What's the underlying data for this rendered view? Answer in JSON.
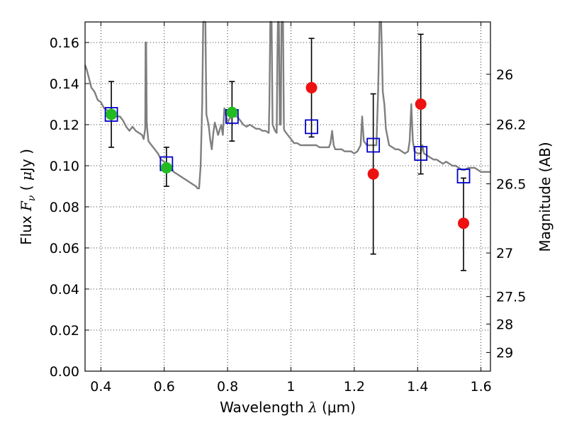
{
  "chart_data": {
    "type": "scatter",
    "xlabel": "Wavelength  λ (μm)",
    "ylabel": "Flux  F_ν  ( μJy )",
    "ylabel_parts": {
      "pre": "Flux ",
      "var": "F",
      "sub": "ν",
      "open": " ( ",
      "mu": "μ",
      "unit": "Jy )"
    },
    "xlabel_parts": {
      "pre": "Wavelength  ",
      "lambda": "λ",
      "unit": " (μm)"
    },
    "y2label": "Magnitude (AB)",
    "xlim": [
      0.35,
      1.63
    ],
    "ylim": [
      0.0,
      0.17
    ],
    "grid": true,
    "x_ticks": [
      "0.4",
      "0.6",
      "0.8",
      "1",
      "1.2",
      "1.4",
      "1.6"
    ],
    "y_ticks": [
      "0.00",
      "0.02",
      "0.04",
      "0.06",
      "0.08",
      "0.10",
      "0.12",
      "0.14",
      "0.16"
    ],
    "y2_ticks": [
      "26",
      "26.2",
      "26.5",
      "27",
      "27.5",
      "28",
      "29"
    ],
    "colors": {
      "spectrum": "#7f7f7f",
      "green": "#22bb22",
      "red": "#ee1111",
      "model_box": "#0000cc",
      "errorbar": "#000000"
    },
    "series": [
      {
        "type": "line",
        "values": [
          [
            0.35,
            0.149
          ],
          [
            0.355,
            0.147
          ],
          [
            0.36,
            0.144
          ],
          [
            0.37,
            0.138
          ],
          [
            0.38,
            0.136
          ],
          [
            0.39,
            0.132
          ],
          [
            0.4,
            0.131
          ],
          [
            0.41,
            0.128
          ],
          [
            0.42,
            0.127
          ],
          [
            0.43,
            0.126
          ],
          [
            0.44,
            0.125
          ],
          [
            0.45,
            0.124
          ],
          [
            0.46,
            0.124
          ],
          [
            0.47,
            0.122
          ],
          [
            0.48,
            0.119
          ],
          [
            0.49,
            0.117
          ],
          [
            0.5,
            0.119
          ],
          [
            0.51,
            0.117
          ],
          [
            0.52,
            0.116
          ],
          [
            0.53,
            0.115
          ],
          [
            0.535,
            0.113
          ],
          [
            0.54,
            0.118
          ],
          [
            0.541,
            0.16
          ],
          [
            0.543,
            0.16
          ],
          [
            0.545,
            0.12
          ],
          [
            0.55,
            0.112
          ],
          [
            0.56,
            0.11
          ],
          [
            0.57,
            0.108
          ],
          [
            0.58,
            0.106
          ],
          [
            0.59,
            0.103
          ],
          [
            0.6,
            0.102
          ],
          [
            0.61,
            0.1
          ],
          [
            0.62,
            0.099
          ],
          [
            0.63,
            0.097
          ],
          [
            0.64,
            0.096
          ],
          [
            0.65,
            0.095
          ],
          [
            0.66,
            0.094
          ],
          [
            0.67,
            0.093
          ],
          [
            0.68,
            0.092
          ],
          [
            0.69,
            0.091
          ],
          [
            0.7,
            0.09
          ],
          [
            0.705,
            0.089
          ],
          [
            0.71,
            0.089
          ],
          [
            0.715,
            0.1
          ],
          [
            0.72,
            0.13
          ],
          [
            0.723,
            0.17
          ],
          [
            0.73,
            0.17
          ],
          [
            0.733,
            0.125
          ],
          [
            0.74,
            0.12
          ],
          [
            0.745,
            0.113
          ],
          [
            0.75,
            0.108
          ],
          [
            0.755,
            0.116
          ],
          [
            0.76,
            0.121
          ],
          [
            0.77,
            0.115
          ],
          [
            0.78,
            0.12
          ],
          [
            0.785,
            0.115
          ],
          [
            0.79,
            0.128
          ],
          [
            0.8,
            0.121
          ],
          [
            0.81,
            0.124
          ],
          [
            0.82,
            0.124
          ],
          [
            0.83,
            0.124
          ],
          [
            0.84,
            0.122
          ],
          [
            0.85,
            0.12
          ],
          [
            0.86,
            0.119
          ],
          [
            0.87,
            0.12
          ],
          [
            0.88,
            0.119
          ],
          [
            0.89,
            0.118
          ],
          [
            0.9,
            0.118
          ],
          [
            0.91,
            0.117
          ],
          [
            0.92,
            0.117
          ],
          [
            0.93,
            0.116
          ],
          [
            0.932,
            0.13
          ],
          [
            0.935,
            0.17
          ],
          [
            0.939,
            0.17
          ],
          [
            0.942,
            0.12
          ],
          [
            0.95,
            0.117
          ],
          [
            0.955,
            0.116
          ],
          [
            0.957,
            0.15
          ],
          [
            0.959,
            0.17
          ],
          [
            0.962,
            0.17
          ],
          [
            0.965,
            0.12
          ],
          [
            0.968,
            0.12
          ],
          [
            0.97,
            0.17
          ],
          [
            0.975,
            0.17
          ],
          [
            0.978,
            0.118
          ],
          [
            0.98,
            0.117
          ],
          [
            1.0,
            0.113
          ],
          [
            1.01,
            0.111
          ],
          [
            1.02,
            0.111
          ],
          [
            1.03,
            0.11
          ],
          [
            1.04,
            0.11
          ],
          [
            1.06,
            0.11
          ],
          [
            1.07,
            0.11
          ],
          [
            1.08,
            0.11
          ],
          [
            1.09,
            0.109
          ],
          [
            1.1,
            0.109
          ],
          [
            1.11,
            0.109
          ],
          [
            1.12,
            0.109
          ],
          [
            1.125,
            0.111
          ],
          [
            1.13,
            0.117
          ],
          [
            1.135,
            0.11
          ],
          [
            1.14,
            0.108
          ],
          [
            1.15,
            0.108
          ],
          [
            1.16,
            0.108
          ],
          [
            1.17,
            0.107
          ],
          [
            1.18,
            0.107
          ],
          [
            1.19,
            0.107
          ],
          [
            1.2,
            0.106
          ],
          [
            1.21,
            0.107
          ],
          [
            1.22,
            0.11
          ],
          [
            1.225,
            0.124
          ],
          [
            1.23,
            0.112
          ],
          [
            1.24,
            0.11
          ],
          [
            1.26,
            0.11
          ],
          [
            1.27,
            0.11
          ],
          [
            1.275,
            0.135
          ],
          [
            1.28,
            0.17
          ],
          [
            1.285,
            0.17
          ],
          [
            1.29,
            0.136
          ],
          [
            1.295,
            0.13
          ],
          [
            1.3,
            0.118
          ],
          [
            1.31,
            0.11
          ],
          [
            1.32,
            0.109
          ],
          [
            1.33,
            0.108
          ],
          [
            1.34,
            0.108
          ],
          [
            1.35,
            0.107
          ],
          [
            1.36,
            0.106
          ],
          [
            1.37,
            0.107
          ],
          [
            1.375,
            0.112
          ],
          [
            1.38,
            0.13
          ],
          [
            1.385,
            0.112
          ],
          [
            1.39,
            0.107
          ],
          [
            1.4,
            0.106
          ],
          [
            1.41,
            0.106
          ],
          [
            1.415,
            0.11
          ],
          [
            1.42,
            0.106
          ],
          [
            1.43,
            0.105
          ],
          [
            1.44,
            0.104
          ],
          [
            1.45,
            0.103
          ],
          [
            1.46,
            0.103
          ],
          [
            1.47,
            0.102
          ],
          [
            1.48,
            0.101
          ],
          [
            1.49,
            0.102
          ],
          [
            1.5,
            0.101
          ],
          [
            1.51,
            0.1
          ],
          [
            1.52,
            0.1
          ],
          [
            1.53,
            0.099
          ],
          [
            1.54,
            0.098
          ],
          [
            1.55,
            0.098
          ],
          [
            1.56,
            0.099
          ],
          [
            1.57,
            0.099
          ],
          [
            1.58,
            0.099
          ],
          [
            1.59,
            0.098
          ],
          [
            1.6,
            0.097
          ],
          [
            1.61,
            0.097
          ],
          [
            1.62,
            0.097
          ],
          [
            1.63,
            0.097
          ]
        ]
      },
      {
        "type": "errorbar",
        "values": [
          [
            0.433,
            0.109,
            0.141
          ],
          [
            0.607,
            0.09,
            0.109
          ],
          [
            0.814,
            0.112,
            0.141
          ],
          [
            1.065,
            0.114,
            0.162
          ],
          [
            1.26,
            0.057,
            0.135
          ],
          [
            1.41,
            0.096,
            0.164
          ],
          [
            1.545,
            0.049,
            0.094
          ]
        ]
      },
      {
        "type": "model_box",
        "values": [
          [
            0.433,
            0.125
          ],
          [
            0.607,
            0.101
          ],
          [
            0.814,
            0.124
          ],
          [
            1.065,
            0.119
          ],
          [
            1.26,
            0.11
          ],
          [
            1.41,
            0.106
          ],
          [
            1.545,
            0.095
          ]
        ]
      },
      {
        "type": "scatter",
        "marker": "green",
        "values": [
          [
            0.433,
            0.125
          ],
          [
            0.607,
            0.099
          ],
          [
            0.814,
            0.126
          ]
        ]
      },
      {
        "type": "scatter",
        "marker": "red",
        "values": [
          [
            1.065,
            0.138
          ],
          [
            1.26,
            0.096
          ],
          [
            1.41,
            0.13
          ],
          [
            1.545,
            0.072
          ]
        ]
      }
    ]
  }
}
